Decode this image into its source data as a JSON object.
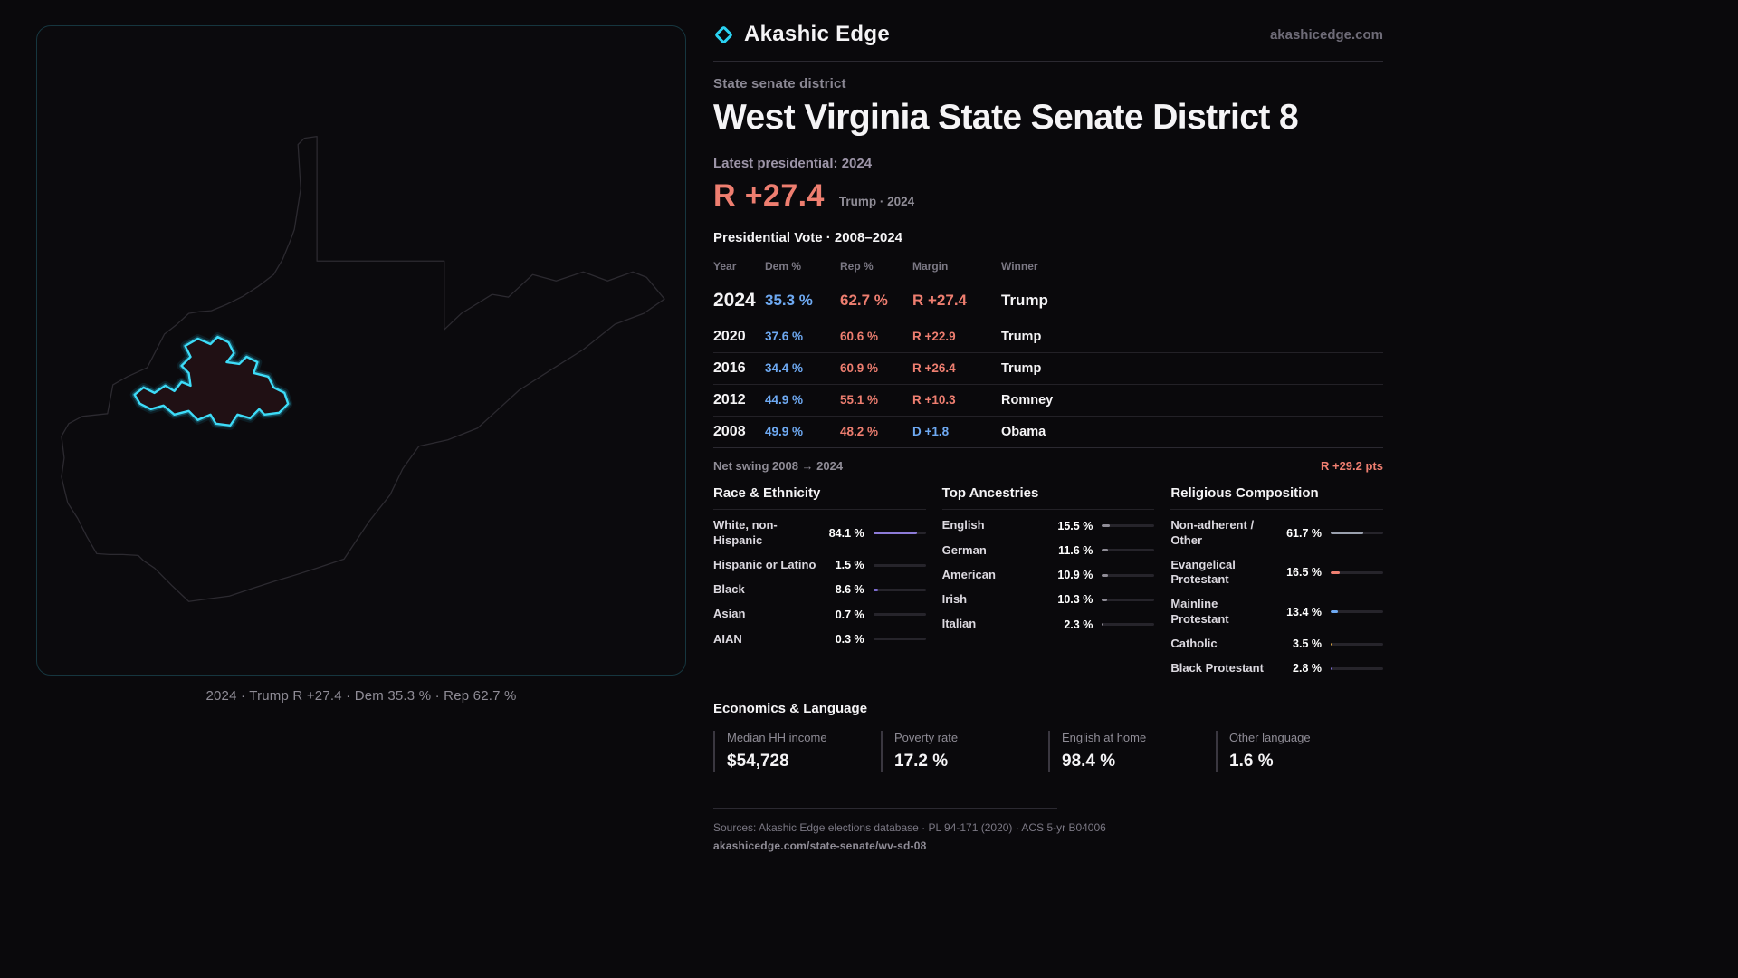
{
  "brand": {
    "name": "Akashic Edge",
    "domain": "akashicedge.com"
  },
  "district": {
    "kicker": "State senate district",
    "title": "West Virginia State Senate District 8"
  },
  "latest": {
    "label": "Latest presidential: 2024",
    "margin": "R +27.4",
    "detail": "Trump · 2024"
  },
  "vote_table": {
    "title": "Presidential Vote · 2008–2024",
    "columns": [
      "Year",
      "Dem %",
      "Rep %",
      "Margin",
      "Winner"
    ],
    "rows": [
      {
        "year": "2024",
        "dem": "35.3 %",
        "rep": "62.7 %",
        "margin": "R +27.4",
        "winner": "Trump"
      },
      {
        "year": "2020",
        "dem": "37.6 %",
        "rep": "60.6 %",
        "margin": "R +22.9",
        "winner": "Trump"
      },
      {
        "year": "2016",
        "dem": "34.4 %",
        "rep": "60.9 %",
        "margin": "R +26.4",
        "winner": "Trump"
      },
      {
        "year": "2012",
        "dem": "44.9 %",
        "rep": "55.1 %",
        "margin": "R +10.3",
        "winner": "Romney"
      },
      {
        "year": "2008",
        "dem": "49.9 %",
        "rep": "48.2 %",
        "margin": "D +1.8",
        "winner": "Obama"
      }
    ]
  },
  "net_swing": {
    "label": "Net swing 2008 → 2024",
    "value": "R +29.2 pts"
  },
  "demographics": {
    "race": {
      "title": "Race & Ethnicity",
      "items": [
        {
          "label": "White, non-Hispanic",
          "value": "84.1 %",
          "pct": 84.1,
          "color": "#8d7bd8"
        },
        {
          "label": "Hispanic or Latino",
          "value": "1.5 %",
          "pct": 1.5,
          "color": "#d9a441"
        },
        {
          "label": "Black",
          "value": "8.6 %",
          "pct": 8.6,
          "color": "#7c6bd0"
        },
        {
          "label": "Asian",
          "value": "0.7 %",
          "pct": 0.7,
          "color": "#9aa0ae"
        },
        {
          "label": "AIAN",
          "value": "0.3 %",
          "pct": 0.3,
          "color": "#9aa0ae"
        }
      ]
    },
    "ancestry": {
      "title": "Top Ancestries",
      "items": [
        {
          "label": "English",
          "value": "15.5 %",
          "pct": 15.5,
          "color": "#8f8c96"
        },
        {
          "label": "German",
          "value": "11.6 %",
          "pct": 11.6,
          "color": "#8f8c96"
        },
        {
          "label": "American",
          "value": "10.9 %",
          "pct": 10.9,
          "color": "#8f8c96"
        },
        {
          "label": "Irish",
          "value": "10.3 %",
          "pct": 10.3,
          "color": "#8f8c96"
        },
        {
          "label": "Italian",
          "value": "2.3 %",
          "pct": 2.3,
          "color": "#8f8c96"
        }
      ]
    },
    "religion": {
      "title": "Religious Composition",
      "items": [
        {
          "label": "Non-adherent / Other",
          "value": "61.7 %",
          "pct": 61.7,
          "color": "#9aa0ae"
        },
        {
          "label": "Evangelical Protestant",
          "value": "16.5 %",
          "pct": 16.5,
          "color": "#ee7e70"
        },
        {
          "label": "Mainline Protestant",
          "value": "13.4 %",
          "pct": 13.4,
          "color": "#6ea9f2"
        },
        {
          "label": "Catholic",
          "value": "3.5 %",
          "pct": 3.5,
          "color": "#d9a441"
        },
        {
          "label": "Black Protestant",
          "value": "2.8 %",
          "pct": 2.8,
          "color": "#7c6bd0"
        }
      ]
    }
  },
  "economics": {
    "title": "Economics & Language",
    "stats": [
      {
        "label": "Median HH income",
        "value": "$54,728"
      },
      {
        "label": "Poverty rate",
        "value": "17.2 %"
      },
      {
        "label": "English at home",
        "value": "98.4 %"
      },
      {
        "label": "Other language",
        "value": "1.6 %"
      }
    ]
  },
  "map": {
    "caption": "2024 · Trump R +27.4 · Dem 35.3 % · Rep 62.7 %"
  },
  "footer": {
    "sources": "Sources: Akashic Edge elections database · PL 94-171 (2020) · ACS 5-yr B04006",
    "permalink": "akashicedge.com/state-senate/wv-sd-08"
  },
  "colors": {
    "accent_cyan": "#2ad2f2",
    "rep_red": "#ee7e70",
    "dem_blue": "#6ea9f2"
  }
}
